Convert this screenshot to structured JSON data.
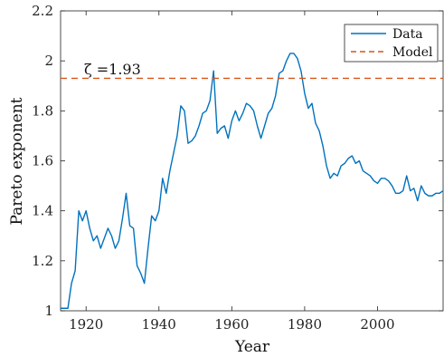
{
  "chart_data": {
    "type": "line",
    "xlabel": "Year",
    "ylabel": "Pareto exponent",
    "xlim": [
      1913,
      2018
    ],
    "ylim": [
      1,
      2.2
    ],
    "xticks": [
      1920,
      1940,
      1960,
      1980,
      2000
    ],
    "yticks": [
      1,
      1.2,
      1.4,
      1.6,
      1.8,
      2,
      2.2
    ],
    "ytick_labels": [
      "1",
      "1.2",
      "1.4",
      "1.6",
      "1.8",
      "2",
      "2.2"
    ],
    "grid": false,
    "legend_position": "top-right",
    "annotation": "ζ =1.93",
    "series": [
      {
        "name": "Data",
        "style": "solid",
        "color": "#0072BD",
        "x": [
          1913,
          1914,
          1915,
          1916,
          1917,
          1918,
          1919,
          1920,
          1921,
          1922,
          1923,
          1924,
          1925,
          1926,
          1927,
          1928,
          1929,
          1930,
          1931,
          1932,
          1933,
          1934,
          1935,
          1936,
          1937,
          1938,
          1939,
          1940,
          1941,
          1942,
          1943,
          1944,
          1945,
          1946,
          1947,
          1948,
          1949,
          1950,
          1951,
          1952,
          1953,
          1954,
          1955,
          1956,
          1957,
          1958,
          1959,
          1960,
          1961,
          1962,
          1963,
          1964,
          1965,
          1966,
          1967,
          1968,
          1969,
          1970,
          1971,
          1972,
          1973,
          1974,
          1975,
          1976,
          1977,
          1978,
          1979,
          1980,
          1981,
          1982,
          1983,
          1984,
          1985,
          1986,
          1987,
          1988,
          1989,
          1990,
          1991,
          1992,
          1993,
          1994,
          1995,
          1996,
          1997,
          1998,
          1999,
          2000,
          2001,
          2002,
          2003,
          2004,
          2005,
          2006,
          2007,
          2008,
          2009,
          2010,
          2011,
          2012,
          2013,
          2014,
          2015,
          2016,
          2017,
          2018
        ],
        "y": [
          1.01,
          1.01,
          1.01,
          1.11,
          1.16,
          1.4,
          1.36,
          1.4,
          1.33,
          1.28,
          1.3,
          1.25,
          1.29,
          1.33,
          1.3,
          1.25,
          1.28,
          1.37,
          1.47,
          1.34,
          1.33,
          1.18,
          1.15,
          1.11,
          1.25,
          1.38,
          1.36,
          1.4,
          1.53,
          1.47,
          1.56,
          1.63,
          1.7,
          1.82,
          1.8,
          1.67,
          1.68,
          1.7,
          1.74,
          1.79,
          1.8,
          1.84,
          1.96,
          1.71,
          1.73,
          1.74,
          1.69,
          1.76,
          1.8,
          1.76,
          1.79,
          1.83,
          1.82,
          1.8,
          1.74,
          1.69,
          1.74,
          1.79,
          1.81,
          1.86,
          1.95,
          1.96,
          2.0,
          2.03,
          2.03,
          2.01,
          1.96,
          1.87,
          1.81,
          1.83,
          1.75,
          1.72,
          1.66,
          1.58,
          1.53,
          1.55,
          1.54,
          1.58,
          1.59,
          1.61,
          1.62,
          1.59,
          1.6,
          1.56,
          1.55,
          1.54,
          1.52,
          1.51,
          1.53,
          1.53,
          1.52,
          1.5,
          1.47,
          1.47,
          1.48,
          1.54,
          1.48,
          1.49,
          1.44,
          1.5,
          1.47,
          1.46,
          1.46,
          1.47,
          1.47,
          1.48
        ]
      },
      {
        "name": "Model",
        "style": "dashed",
        "color": "#D95319",
        "x": [
          1913,
          2018
        ],
        "y": [
          1.93,
          1.93
        ]
      }
    ]
  }
}
